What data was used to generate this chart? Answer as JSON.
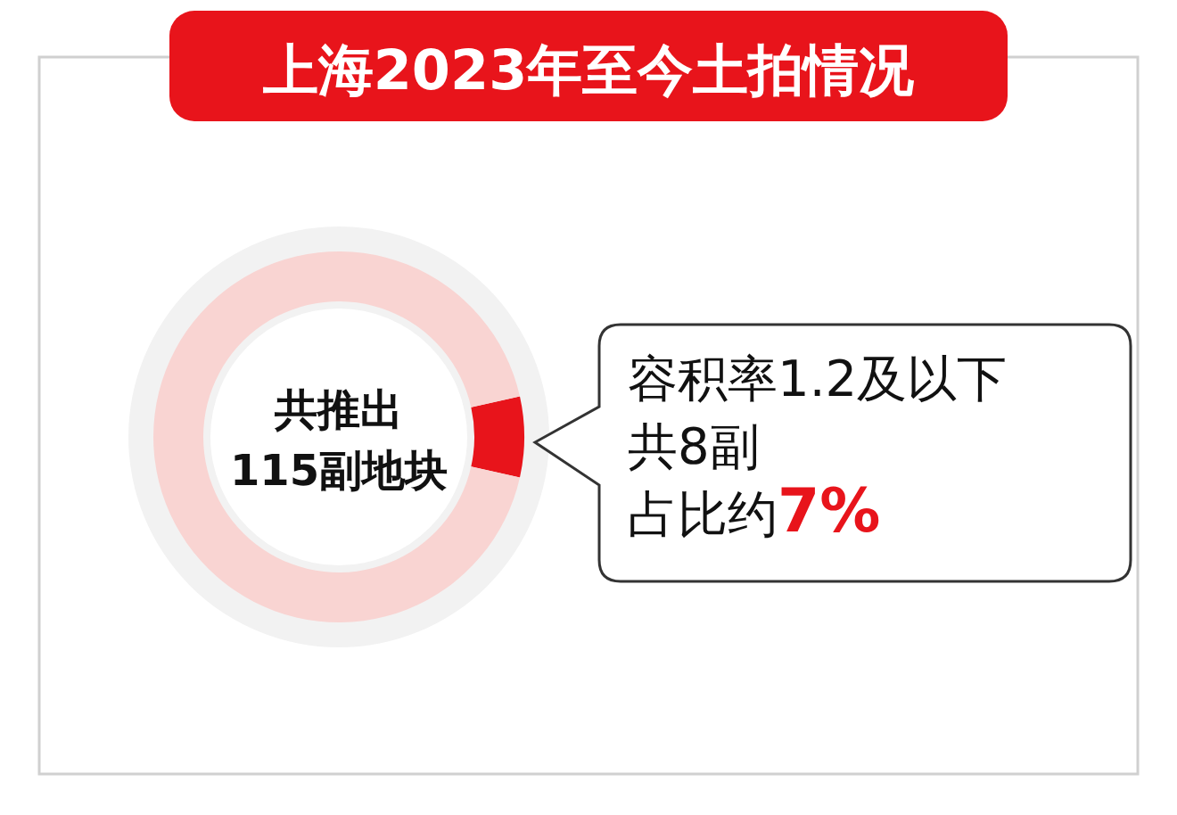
{
  "chart_data": {
    "type": "donut",
    "title": "上海2023年至今土拍情况",
    "categories": [
      null,
      null
    ],
    "values": [
      7,
      93
    ],
    "colors": [
      "#e8141b",
      "#f9d4d2"
    ],
    "annotations": [
      "共推出",
      "115副地块",
      "容积率1.2及以下",
      "共8副",
      "占比约7%"
    ]
  }
}
